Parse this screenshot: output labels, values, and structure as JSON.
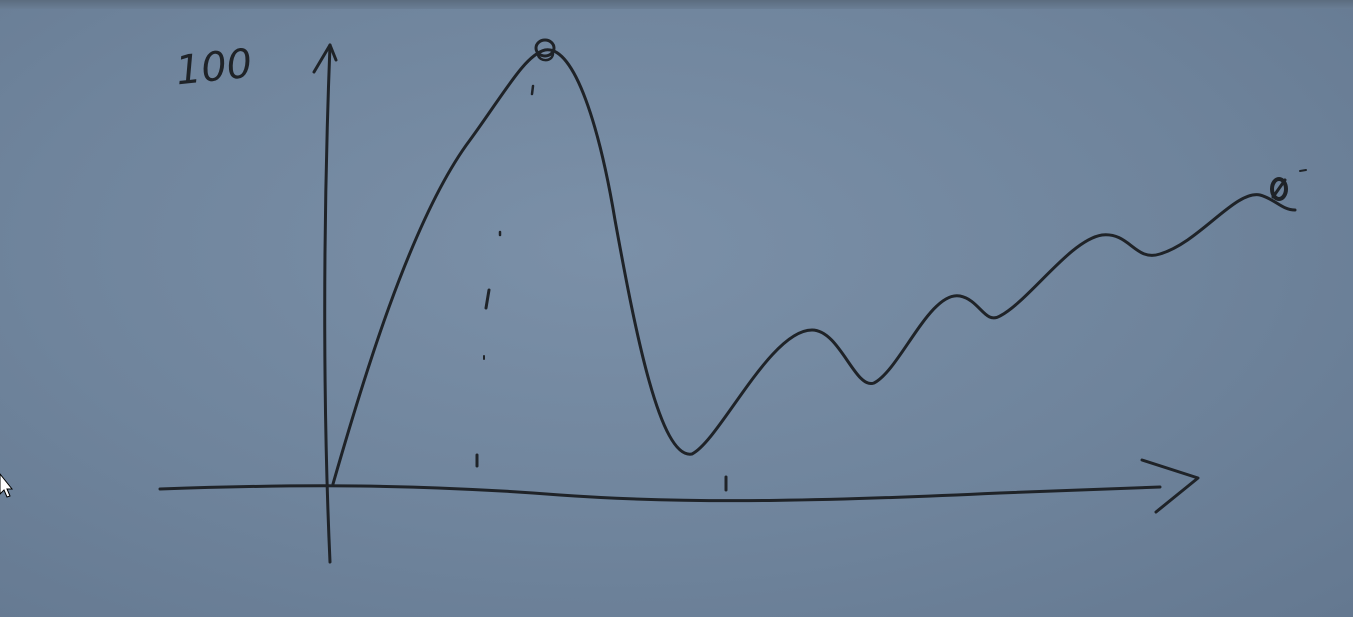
{
  "diagram": {
    "y_axis_label": "100",
    "ink_color": "#1f2328",
    "board_color": "#6e839b"
  }
}
